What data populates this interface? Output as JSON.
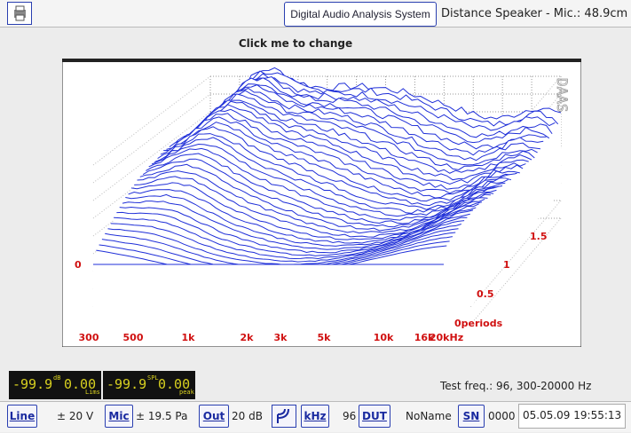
{
  "toolbar": {
    "app_button": "Digital Audio Analysis System",
    "distance": "Distance Speaker - Mic.: 48.9cm"
  },
  "plot": {
    "caption": "Click me to change",
    "watermark": "DAAS",
    "z_label": "0",
    "x_labels": [
      "300",
      "500",
      "1k",
      "2k",
      "3k",
      "5k",
      "10k",
      "16k",
      "20kHz"
    ],
    "depth_labels": [
      "1.5",
      "1",
      "0.5",
      "0periods"
    ]
  },
  "display": {
    "left_value": "-99.9",
    "left_unit": "dB",
    "left_value2": "0.00",
    "left_unit2": "Lims",
    "right_value": "-99.9",
    "right_unit": "SPL",
    "right_value2": "0.00",
    "right_unit2": "peak"
  },
  "status": "Test freq.: 96, 300-20000 Hz",
  "statusbar": {
    "line": "Line",
    "line_range": "± 20 V",
    "mic": "Mic",
    "mic_range": "± 19.5 Pa",
    "out": "Out",
    "out_value": "20 dB",
    "khz": "kHz",
    "freq": "96",
    "dut": "DUT",
    "dut_name": "NoName",
    "sn": "SN",
    "sn_value": "0000",
    "datetime": "05.05.09 19:55:13"
  }
}
